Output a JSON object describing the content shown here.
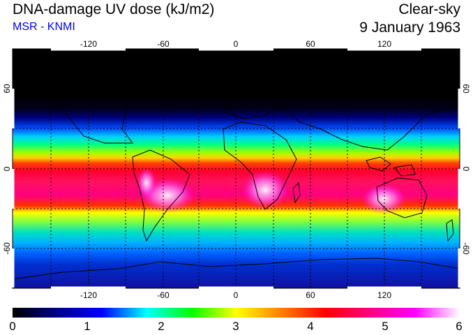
{
  "header": {
    "title": "DNA-damage UV dose (kJ/m2)",
    "source": "MSR - KNMI",
    "condition": "Clear-sky",
    "date": "9 January 1963"
  },
  "axes": {
    "lon_ticks": [
      "-120",
      "-60",
      "0",
      "60",
      "120"
    ],
    "lat_left": [
      "60",
      "0",
      "-60"
    ],
    "lat_right": [
      "60",
      "0",
      "-60"
    ]
  },
  "colorbar": {
    "labels": [
      "0",
      "1",
      "2",
      "3",
      "4",
      "5",
      "6"
    ],
    "min": 0,
    "max": 6,
    "stops": [
      "#000000",
      "#00008b",
      "#0000ff",
      "#00ffff",
      "#00ff00",
      "#ffff00",
      "#ff8000",
      "#ff0000",
      "#ff0080",
      "#ff00ff",
      "#ffffff"
    ]
  },
  "map_bands": [
    {
      "lat": 90,
      "color": "#000000"
    },
    {
      "lat": 55,
      "color": "#000000"
    },
    {
      "lat": 45,
      "color": "#00001a"
    },
    {
      "lat": 38,
      "color": "#000080"
    },
    {
      "lat": 30,
      "color": "#0050ff"
    },
    {
      "lat": 24,
      "color": "#00d0ff"
    },
    {
      "lat": 18,
      "color": "#00ff80"
    },
    {
      "lat": 12,
      "color": "#a0ff00"
    },
    {
      "lat": 8,
      "color": "#ffd000"
    },
    {
      "lat": 4,
      "color": "#ff4000"
    },
    {
      "lat": -2,
      "color": "#ff0030"
    },
    {
      "lat": -10,
      "color": "#ff1060"
    },
    {
      "lat": -20,
      "color": "#ff0080"
    },
    {
      "lat": -28,
      "color": "#ff3000"
    },
    {
      "lat": -33,
      "color": "#ffff00"
    },
    {
      "lat": -40,
      "color": "#80ff40"
    },
    {
      "lat": -48,
      "color": "#00e0c0"
    },
    {
      "lat": -56,
      "color": "#00b0ff"
    },
    {
      "lat": -64,
      "color": "#0060ff"
    },
    {
      "lat": -72,
      "color": "#0030d0"
    },
    {
      "lat": -90,
      "color": "#1010a0"
    }
  ]
}
